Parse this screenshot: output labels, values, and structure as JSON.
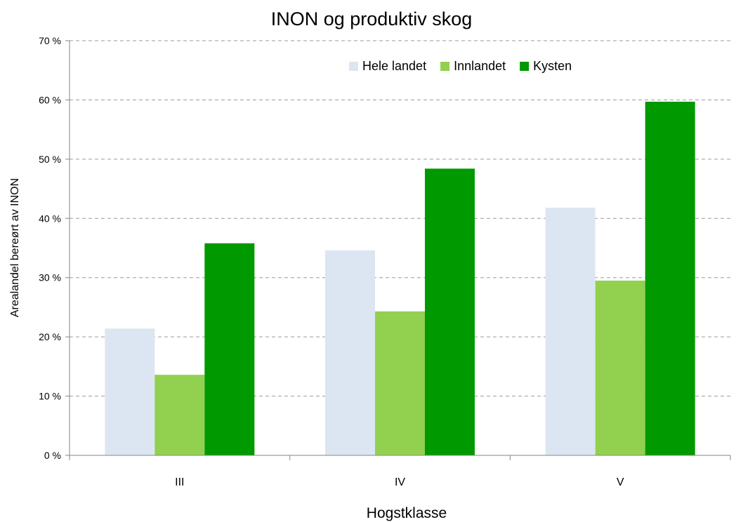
{
  "chart_data": {
    "type": "bar",
    "title": "INON og produktiv skog",
    "xlabel": "Hogstklasse",
    "ylabel": "Arealandel bereørt av INON",
    "categories": [
      "III",
      "IV",
      "V"
    ],
    "series": [
      {
        "name": "Hele landet",
        "color": "#dce6f2",
        "values": [
          21.4,
          34.6,
          41.8
        ]
      },
      {
        "name": "Innlandet",
        "color": "#92d050",
        "values": [
          13.6,
          24.3,
          29.5
        ]
      },
      {
        "name": "Kysten",
        "color": "#009900",
        "values": [
          35.8,
          48.4,
          59.7
        ]
      }
    ],
    "ylim": [
      0,
      70
    ],
    "yticks": [
      0,
      10,
      20,
      30,
      40,
      50,
      60,
      70
    ],
    "ytick_labels": [
      "0 %",
      "10 %",
      "20 %",
      "30 %",
      "40 %",
      "50 %",
      "60 %",
      "70 %"
    ],
    "grid": "horizontal dashed",
    "legend": "top-right inside plot"
  }
}
